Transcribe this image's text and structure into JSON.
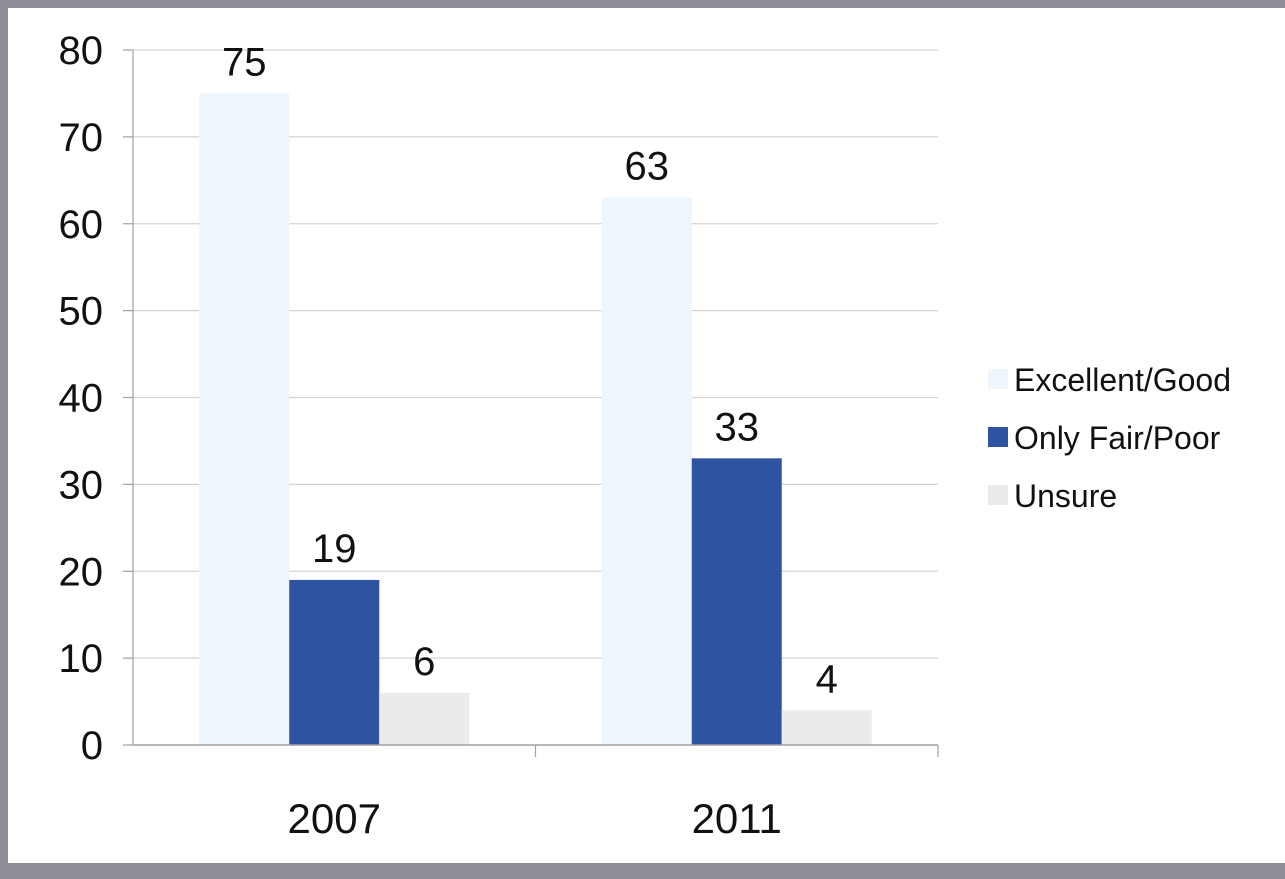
{
  "chart_data": {
    "type": "bar",
    "categories": [
      "2007",
      "2011"
    ],
    "series": [
      {
        "name": "Excellent/Good",
        "values": [
          75,
          63
        ],
        "color": "#eef6fb"
      },
      {
        "name": "Only Fair/Poor",
        "values": [
          19,
          33
        ],
        "color": "#2e54a1"
      },
      {
        "name": "Unsure",
        "values": [
          6,
          4
        ],
        "color": "#ebebeb"
      }
    ],
    "data_labels": [
      [
        "75",
        "63"
      ],
      [
        "19",
        "33"
      ],
      [
        "6",
        "4"
      ]
    ],
    "ylim": [
      0,
      80
    ],
    "yticks": [
      "0",
      "10",
      "20",
      "30",
      "40",
      "50",
      "60",
      "70",
      "80"
    ],
    "grid": true,
    "legend_position": "right"
  }
}
